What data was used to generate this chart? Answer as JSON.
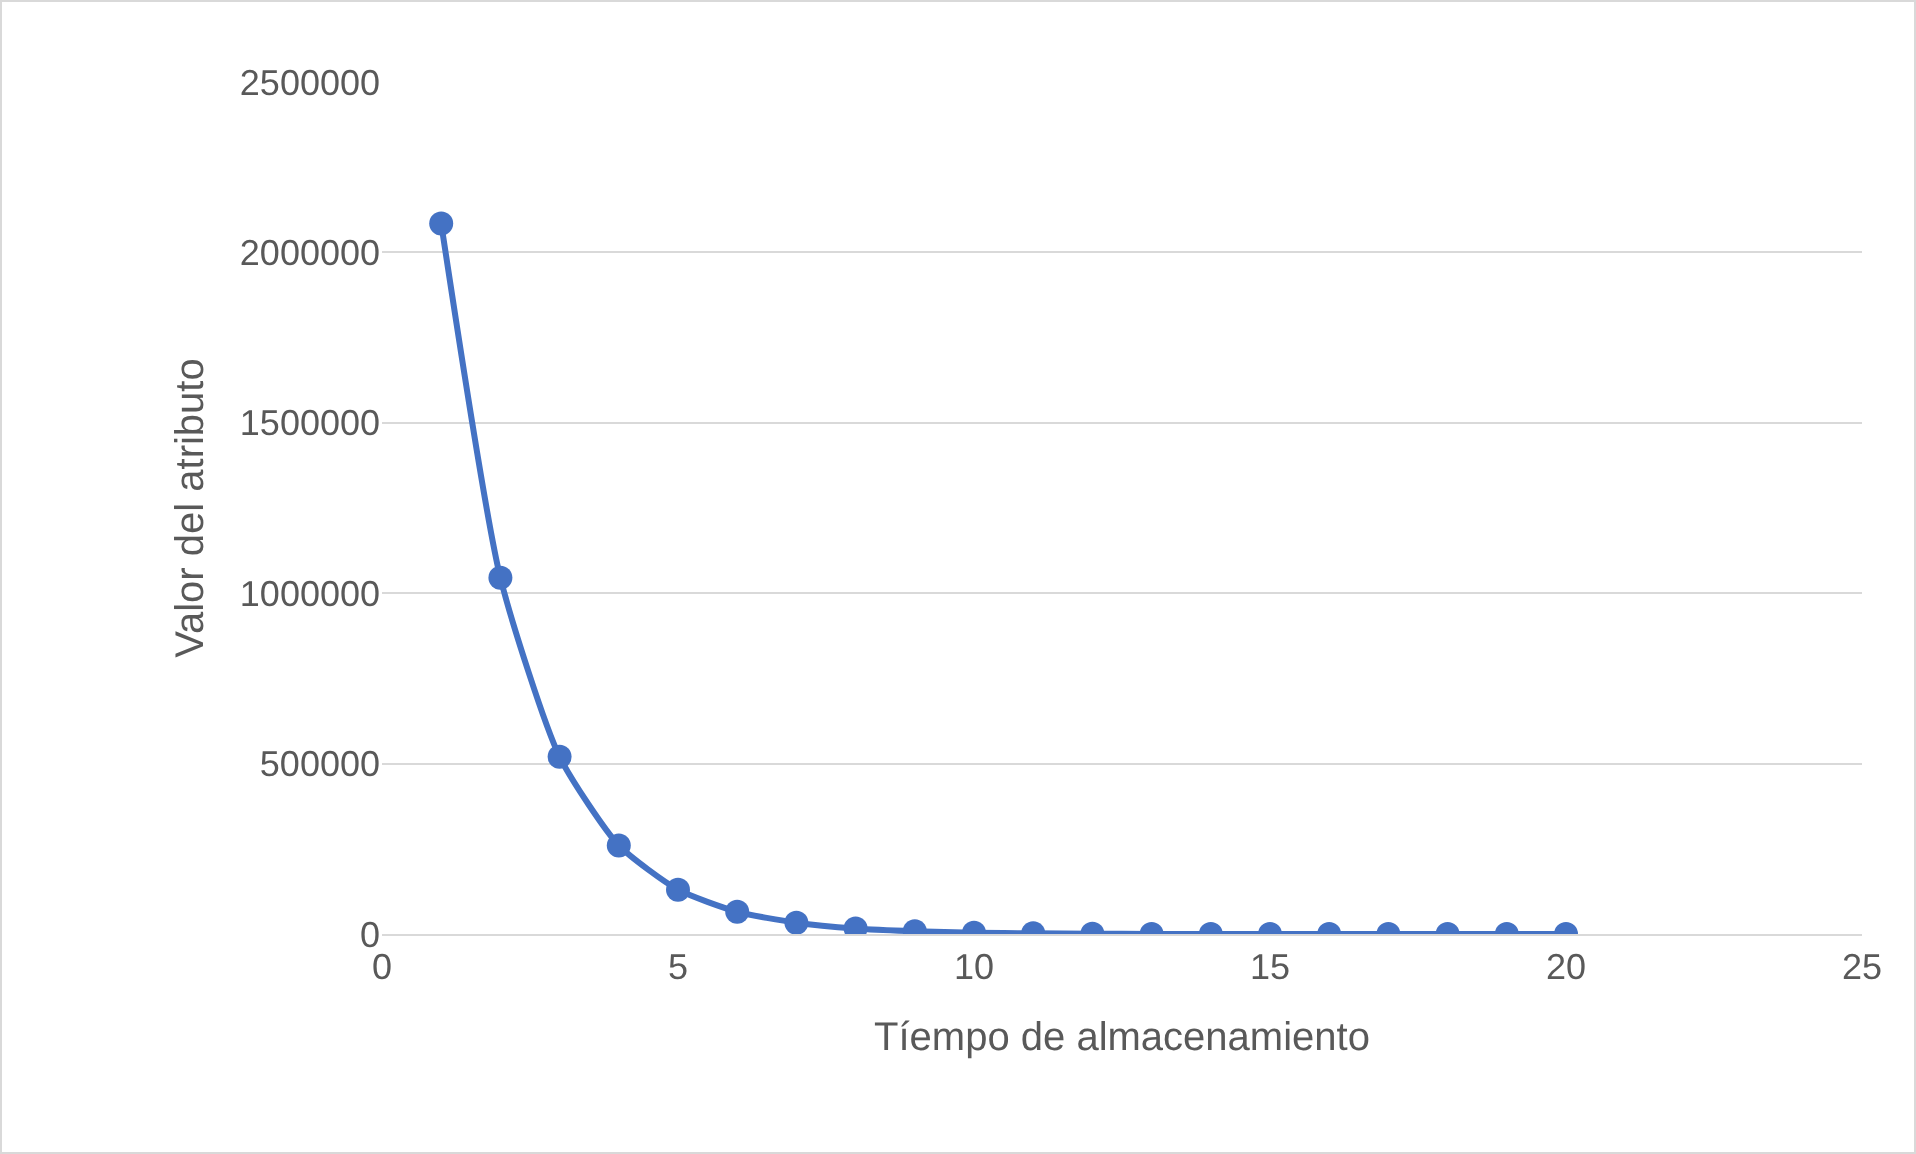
{
  "chart_data": {
    "type": "line",
    "xlabel": "Tíempo de almacenamiento",
    "ylabel": "Valor del atributo",
    "x": [
      1,
      2,
      3,
      4,
      5,
      6,
      7,
      8,
      9,
      10,
      11,
      12,
      13,
      14,
      15,
      16,
      17,
      18,
      19,
      20
    ],
    "series": [
      {
        "color": "#4472c4",
        "values": [
          2085000,
          1045000,
          520000,
          260000,
          130000,
          65000,
          33000,
          16000,
          8000,
          4000,
          2000,
          1000,
          0,
          0,
          0,
          0,
          0,
          0,
          0,
          0
        ]
      }
    ],
    "xlim": [
      0,
      25
    ],
    "xticks": [
      0,
      5,
      10,
      15,
      20,
      25
    ],
    "ylim": [
      0,
      2500000
    ],
    "yticks": [
      0,
      500000,
      1000000,
      1500000,
      2000000,
      2500000
    ],
    "grid": "y",
    "marker": "circle",
    "line_style": "solid"
  }
}
